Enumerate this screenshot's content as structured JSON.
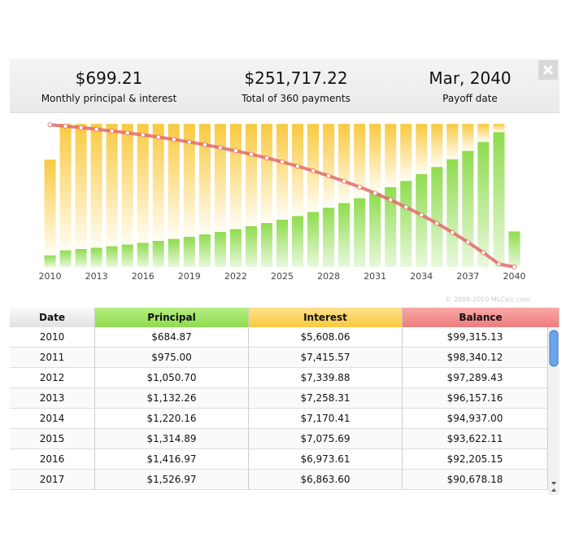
{
  "summary": [
    {
      "value": "$699.21",
      "label": "Monthly principal & interest"
    },
    {
      "value": "$251,717.22",
      "label": "Total of 360 payments"
    },
    {
      "value": "Mar, 2040",
      "label": "Payoff date"
    }
  ],
  "chart_data": {
    "type": "bar",
    "categories": [
      "2010",
      null,
      null,
      "2013",
      null,
      null,
      "2016",
      null,
      null,
      "2019",
      null,
      null,
      "2022",
      null,
      null,
      "2025",
      null,
      null,
      "2028",
      null,
      null,
      "2031",
      null,
      null,
      "2034",
      null,
      null,
      "2037",
      null,
      null,
      "2040"
    ],
    "series": [
      {
        "name": "Principal",
        "color": "#8fdc4e",
        "values": [
          684.87,
          975.0,
          1050.7,
          1132.26,
          1220.16,
          1314.89,
          1416.97,
          1526.97,
          1645.5,
          1773.2,
          1910.9,
          2059.2,
          2219.0,
          2391.3,
          2576.9,
          2776.9,
          2992.5,
          3224.8,
          3475.1,
          3744.9,
          4035.6,
          4348.9,
          4686.5,
          5050.3,
          5442.3,
          5864.8,
          6320.0,
          6810.6,
          7339.3,
          7909.0,
          2080.7
        ]
      },
      {
        "name": "Interest",
        "color": "#f9c93f",
        "values": [
          5608.06,
          7415.57,
          7339.88,
          7258.31,
          7170.41,
          7075.69,
          6973.61,
          6863.6,
          6745.0,
          6617.3,
          6479.6,
          6331.3,
          6171.5,
          5999.2,
          5813.6,
          5613.6,
          5398.0,
          5165.7,
          4915.4,
          4645.6,
          4354.9,
          4041.6,
          3704.0,
          3340.2,
          2948.2,
          2525.7,
          2070.5,
          1579.9,
          1051.2,
          481.5,
          16.9
        ]
      },
      {
        "name": "Balance",
        "color": "#e46a6a",
        "axis": "y2",
        "values": [
          99315.13,
          98340.12,
          97289.43,
          96157.16,
          94937.0,
          93622.11,
          92205.15,
          90678.18,
          89032.7,
          87259.5,
          85348.6,
          83289.4,
          81070.4,
          78679.1,
          76102.2,
          73325.3,
          70332.8,
          67108.0,
          63632.9,
          59888.0,
          55852.4,
          51503.5,
          46817.0,
          41766.7,
          36324.4,
          30459.6,
          24139.6,
          17329.0,
          9989.7,
          2080.7,
          0
        ]
      }
    ],
    "ylim": [
      0,
      8400
    ],
    "y2lim": [
      0,
      100000
    ],
    "stacked": true,
    "watermark": "© 2008-2010 MLCalc.com"
  },
  "table": {
    "columns": [
      "Date",
      "Principal",
      "Interest",
      "Balance"
    ],
    "rows": [
      [
        "2010",
        "$684.87",
        "$5,608.06",
        "$99,315.13"
      ],
      [
        "2011",
        "$975.00",
        "$7,415.57",
        "$98,340.12"
      ],
      [
        "2012",
        "$1,050.70",
        "$7,339.88",
        "$97,289.43"
      ],
      [
        "2013",
        "$1,132.26",
        "$7,258.31",
        "$96,157.16"
      ],
      [
        "2014",
        "$1,220.16",
        "$7,170.41",
        "$94,937.00"
      ],
      [
        "2015",
        "$1,314.89",
        "$7,075.69",
        "$93,622.11"
      ],
      [
        "2016",
        "$1,416.97",
        "$6,973.61",
        "$92,205.15"
      ],
      [
        "2017",
        "$1,526.97",
        "$6,863.60",
        "$90,678.18"
      ]
    ]
  }
}
